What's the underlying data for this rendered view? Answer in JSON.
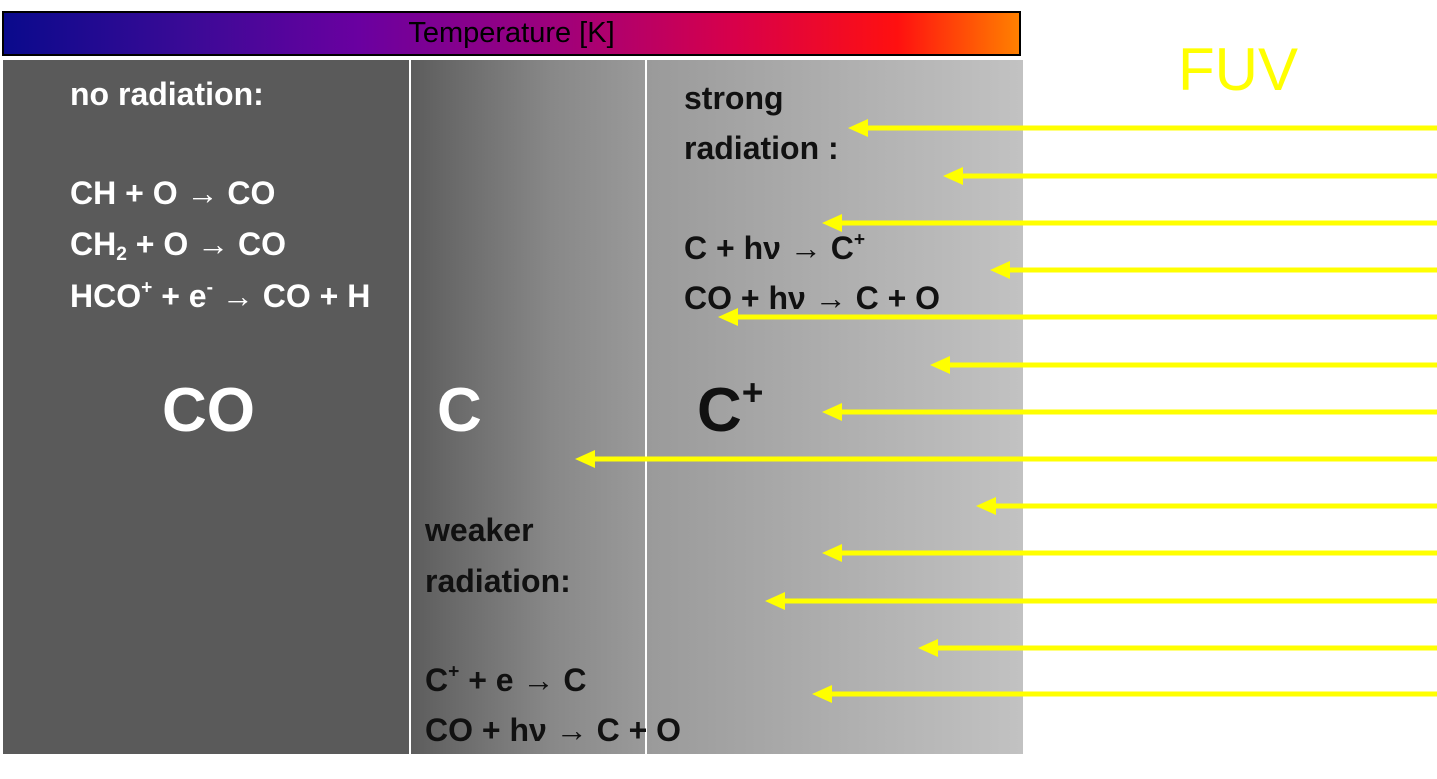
{
  "temperature_bar": {
    "label": "Temperature [K]"
  },
  "fuv_label": "FUV",
  "zones": {
    "co": {
      "symbol": "CO",
      "heading": "no radiation:",
      "reactions": [
        {
          "a": "CH + O",
          "arrow": "→",
          "b": "CO"
        },
        {
          "a": "CH",
          "sub": "2",
          "a2": " + O",
          "arrow": "→",
          "b": "CO"
        },
        {
          "a": "HCO",
          "sup": "+",
          "a2": " + e",
          "sup2": "-",
          "arrow": "→",
          "b": "CO + H"
        }
      ]
    },
    "c": {
      "symbol": "C",
      "heading_line1": "weaker",
      "heading_line2": "radiation:",
      "reactions": [
        {
          "a": "C",
          "sup": "+",
          "a2": " + e",
          "arrow": "→",
          "b": "C"
        },
        {
          "a": "CO + hν",
          "arrow": "→",
          "b": "C + O"
        }
      ]
    },
    "cplus": {
      "symbol": "C",
      "symbol_sup": "+",
      "heading_line1": "strong",
      "heading_line2": "radiation :",
      "reactions": [
        {
          "a": "C + hν",
          "arrow": "→",
          "b": "C",
          "b_sup": "+"
        },
        {
          "a": "CO + hν",
          "arrow": "→",
          "b": "C + O"
        }
      ]
    }
  },
  "colors": {
    "arrow": "#ffff00",
    "fuv": "#ffff00",
    "zone_co": "#5a5a5a",
    "zone_c_gradient": [
      "#5c5c5c",
      "#9a9a9a"
    ],
    "zone_cplus_gradient": [
      "#9a9a9a",
      "#c2c2c2"
    ],
    "temperature_gradient": [
      "#0a0a8c",
      "#6a00a0",
      "#d8004a",
      "#ff1010",
      "#ff8000"
    ]
  },
  "fuv_arrows": {
    "count": 13
  }
}
